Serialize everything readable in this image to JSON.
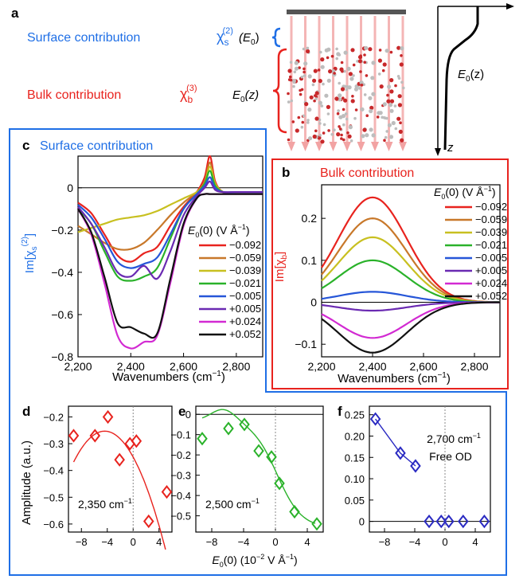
{
  "colors": {
    "surface_blue": "#1f6fe6",
    "bulk_red": "#e8231e",
    "series": [
      "#e8231e",
      "#c8782a",
      "#c8c020",
      "#2ab22a",
      "#2656d8",
      "#6a2ab2",
      "#d22ad2",
      "#111111"
    ],
    "panel_d": "#e8231e",
    "panel_e": "#2ab22a",
    "panel_f": "#2a2ac2"
  },
  "panel_a": {
    "label": "a",
    "surface_text": "Surface contribution",
    "surface_chi_base": "χ",
    "surface_chi_sub": "s",
    "surface_chi_sup": "(2)",
    "surface_field": "(E",
    "surface_field_sub": "0",
    "surface_field_end": ")",
    "bulk_text": "Bulk contribution",
    "bulk_chi_base": "χ",
    "bulk_chi_sub": "b",
    "bulk_chi_sup": "(3)",
    "bulk_field": "E",
    "bulk_field_sub": "0",
    "bulk_field_end": "(z)",
    "profile_label": "E",
    "profile_sub": "0",
    "profile_end": "(z)",
    "z_label": "z"
  },
  "legend": {
    "title_base": "E",
    "title_sub": "0",
    "title_rest": "(0) (V Å",
    "title_sup": "−1",
    "title_end": ")",
    "entries": [
      "−0.092",
      "−0.059",
      "−0.039",
      "−0.021",
      "−0.005",
      "+0.005",
      "+0.024",
      "+0.052"
    ]
  },
  "chart_data": [
    {
      "panel": "c",
      "type": "line",
      "title": "Surface contribution",
      "xlabel": "Wavenumbers (cm−1)",
      "ylabel": "Im[χs(2)]",
      "xlim": [
        2200,
        2900
      ],
      "ylim": [
        -0.8,
        0.15
      ],
      "xticks": [
        "2,200",
        "2,400",
        "2,600",
        "2,800"
      ],
      "yticks": [
        "0",
        "−0.2",
        "−0.4",
        "−0.6",
        "−0.8"
      ],
      "x": [
        2200,
        2250,
        2300,
        2350,
        2400,
        2450,
        2500,
        2550,
        2600,
        2650,
        2680,
        2700,
        2720,
        2750,
        2800,
        2900
      ],
      "series": [
        {
          "name": "−0.092",
          "values": [
            -0.07,
            -0.12,
            -0.22,
            -0.32,
            -0.35,
            -0.31,
            -0.28,
            -0.18,
            -0.09,
            -0.02,
            0.05,
            0.15,
            0.03,
            -0.02,
            -0.02,
            -0.02
          ]
        },
        {
          "name": "−0.059",
          "values": [
            -0.18,
            -0.22,
            -0.26,
            -0.29,
            -0.29,
            -0.26,
            -0.2,
            -0.13,
            -0.07,
            -0.02,
            0.03,
            0.12,
            0.02,
            -0.02,
            -0.02,
            -0.02
          ]
        },
        {
          "name": "−0.039",
          "values": [
            -0.21,
            -0.19,
            -0.17,
            -0.15,
            -0.14,
            -0.13,
            -0.11,
            -0.08,
            -0.05,
            -0.02,
            0.02,
            0.1,
            0.02,
            -0.02,
            -0.02,
            -0.02
          ]
        },
        {
          "name": "−0.021",
          "values": [
            -0.1,
            -0.17,
            -0.3,
            -0.42,
            -0.44,
            -0.42,
            -0.38,
            -0.24,
            -0.1,
            -0.03,
            0.02,
            0.08,
            0.01,
            -0.02,
            -0.02,
            -0.02
          ]
        },
        {
          "name": "−0.005",
          "values": [
            -0.08,
            -0.14,
            -0.24,
            -0.35,
            -0.38,
            -0.36,
            -0.33,
            -0.22,
            -0.1,
            -0.03,
            0.01,
            0.05,
            0.0,
            -0.02,
            -0.02,
            -0.02
          ]
        },
        {
          "name": "+0.005",
          "values": [
            -0.09,
            -0.17,
            -0.28,
            -0.4,
            -0.42,
            -0.37,
            -0.43,
            -0.3,
            -0.13,
            -0.04,
            0.0,
            0.03,
            -0.01,
            -0.02,
            -0.02,
            -0.02
          ]
        },
        {
          "name": "+0.024",
          "values": [
            -0.1,
            -0.22,
            -0.45,
            -0.7,
            -0.76,
            -0.73,
            -0.7,
            -0.45,
            -0.18,
            -0.05,
            -0.03,
            -0.03,
            -0.03,
            -0.03,
            -0.03,
            -0.03
          ]
        },
        {
          "name": "+0.052",
          "values": [
            -0.1,
            -0.21,
            -0.42,
            -0.64,
            -0.66,
            -0.69,
            -0.69,
            -0.43,
            -0.17,
            -0.05,
            -0.03,
            -0.03,
            -0.03,
            -0.03,
            -0.03,
            -0.03
          ]
        }
      ]
    },
    {
      "panel": "b",
      "type": "line",
      "title": "Bulk contribution",
      "xlabel": "Wavenumbers (cm−1)",
      "ylabel": "Im[χb]",
      "xlim": [
        2200,
        2900
      ],
      "ylim": [
        -0.13,
        0.28
      ],
      "xticks": [
        "2,200",
        "2,400",
        "2,600",
        "2,800"
      ],
      "yticks": [
        "0.2",
        "0.1",
        "0",
        "−0.1"
      ],
      "center": 2400,
      "width": 190,
      "x": [
        2200,
        2900
      ],
      "series": [
        {
          "name": "−0.092",
          "peak": 0.25
        },
        {
          "name": "−0.059",
          "peak": 0.2
        },
        {
          "name": "−0.039",
          "peak": 0.155
        },
        {
          "name": "−0.021",
          "peak": 0.1
        },
        {
          "name": "−0.005",
          "peak": 0.025
        },
        {
          "name": "+0.005",
          "peak": -0.02
        },
        {
          "name": "+0.024",
          "peak": -0.085
        },
        {
          "name": "+0.052",
          "peak": -0.12
        }
      ]
    },
    {
      "panel": "d",
      "type": "scatter",
      "annotation": "2,350 cm−1",
      "ylabel": "Amplitude (a.u.)",
      "xlim": [
        -10,
        6
      ],
      "ylim": [
        -0.63,
        -0.16
      ],
      "xticks": [
        "−8",
        "−4",
        "0",
        "4"
      ],
      "yticks": [
        "−0.2",
        "−0.3",
        "−0.4",
        "−0.5",
        "−0.6"
      ],
      "x": [
        -9.2,
        -5.9,
        -3.9,
        -2.1,
        -0.5,
        0.5,
        2.4,
        5.2
      ],
      "y": [
        -0.27,
        -0.27,
        -0.2,
        -0.36,
        -0.3,
        -0.29,
        -0.59,
        -0.48
      ],
      "fit": [
        -0.005,
        -0.044,
        -0.35
      ]
    },
    {
      "panel": "e",
      "type": "scatter",
      "annotation": "2,500 cm−1",
      "xlabel": "E0(0) (10−2 V Å−1)",
      "xlim": [
        -10,
        6
      ],
      "ylim": [
        -0.58,
        0.04
      ],
      "xticks": [
        "−8",
        "−4",
        "0",
        "4"
      ],
      "yticks": [
        "0",
        "−0.1",
        "−0.2",
        "−0.3",
        "−0.4",
        "−0.5"
      ],
      "x": [
        -9.2,
        -5.9,
        -3.9,
        -2.1,
        -0.5,
        0.5,
        2.4,
        5.2
      ],
      "y": [
        -0.12,
        -0.07,
        -0.05,
        -0.18,
        -0.21,
        -0.34,
        -0.48,
        -0.54
      ],
      "fit_logistic": [
        -0.03,
        -0.56,
        0.2,
        0.65
      ]
    },
    {
      "panel": "f",
      "type": "scatter",
      "annotation_line1": "2,700 cm−1",
      "annotation_line2": "Free OD",
      "xlim": [
        -10,
        6
      ],
      "ylim": [
        -0.025,
        0.27
      ],
      "xticks": [
        "−8",
        "−4",
        "0",
        "4"
      ],
      "yticks": [
        "0.25",
        "0.20",
        "0.15",
        "0.10",
        "0.05",
        "0"
      ],
      "x": [
        -9.2,
        -5.9,
        -3.9,
        -2.1,
        -0.5,
        0.5,
        2.4,
        5.2
      ],
      "y": [
        0.24,
        0.16,
        0.13,
        0.0,
        0.0,
        0.0,
        0.0,
        0.0
      ]
    }
  ]
}
